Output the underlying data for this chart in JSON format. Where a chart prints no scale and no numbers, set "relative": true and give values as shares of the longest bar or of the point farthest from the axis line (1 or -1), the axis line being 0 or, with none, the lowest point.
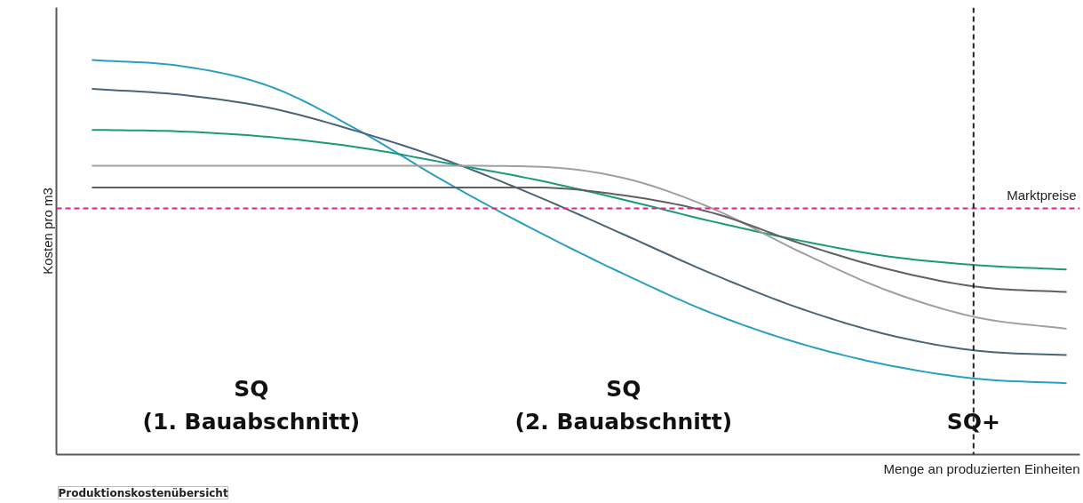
{
  "chart_data": {
    "type": "line",
    "relative": true,
    "xlabel": "Menge an produzierten Einheiten",
    "ylabel": "Kosten pro m3",
    "categories": [
      null,
      null,
      null,
      null,
      null,
      null,
      null,
      null,
      null,
      null,
      null,
      null
    ],
    "series": [
      {
        "color": "#2a9fc4",
        "values": [
          1,
          0.985,
          0.934,
          0.823,
          0.69,
          0.569,
          0.458,
          0.358,
          0.281,
          0.226,
          0.192,
          0.181
        ]
      },
      {
        "color": "#4a6478",
        "values": [
          0.927,
          0.912,
          0.879,
          0.819,
          0.746,
          0.657,
          0.558,
          0.458,
          0.37,
          0.303,
          0.263,
          0.252
        ]
      },
      {
        "color": "#1a9a78",
        "values": [
          0.823,
          0.819,
          0.805,
          0.779,
          0.739,
          0.697,
          0.646,
          0.591,
          0.542,
          0.502,
          0.48,
          0.469
        ]
      },
      {
        "color": "#a0a0a0",
        "values": [
          0.732,
          0.732,
          0.732,
          0.732,
          0.732,
          0.73,
          0.701,
          0.624,
          0.513,
          0.414,
          0.347,
          0.319
        ]
      },
      {
        "color": "#606060",
        "values": [
          0.677,
          0.677,
          0.677,
          0.677,
          0.677,
          0.677,
          0.657,
          0.613,
          0.535,
          0.469,
          0.425,
          0.412
        ]
      }
    ],
    "ref_lines": [
      {
        "axis": "y",
        "value": 0.624,
        "label": "Marktpreise",
        "color": "#e8208c",
        "line_style": "dashed"
      }
    ],
    "annotations": [
      "SQ\n(1. Bauabschnitt)",
      "SQ\n(2. Bauabschnitt)",
      "SQ+",
      "Produktionskostenübersicht"
    ],
    "marker": "none",
    "line_style": "solid"
  }
}
